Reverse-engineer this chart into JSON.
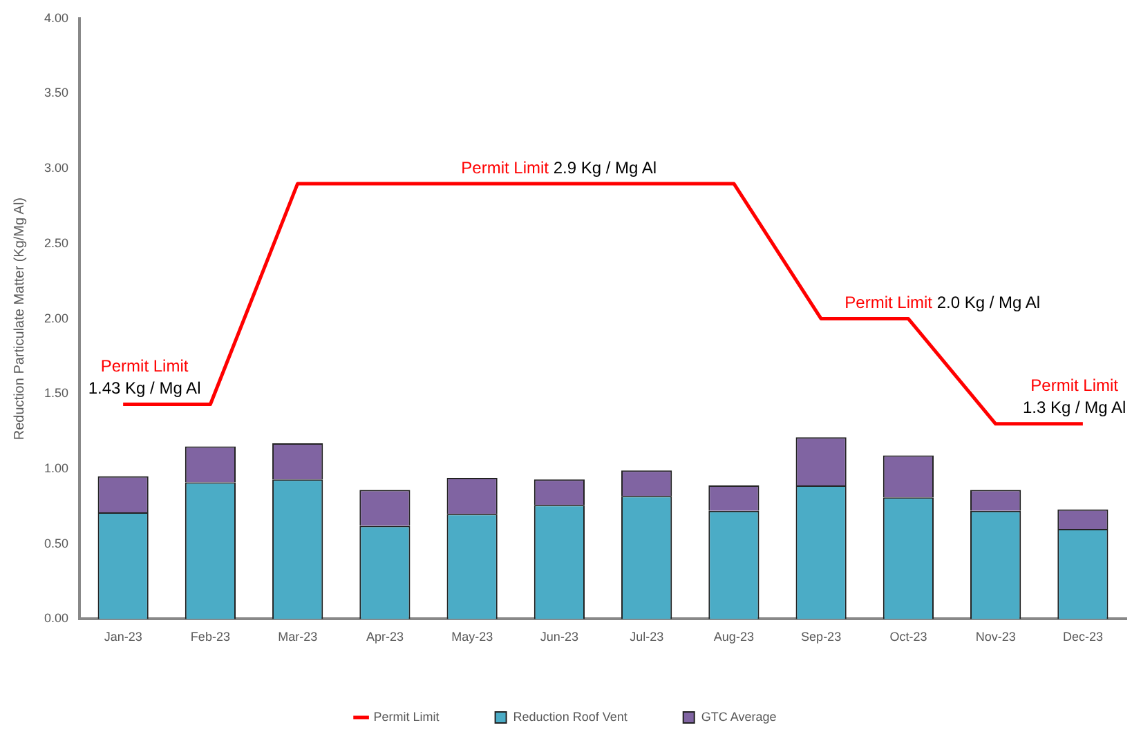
{
  "chart_data": {
    "type": "bar",
    "stacked": true,
    "ylabel": "Reduction Particulate Matter (Kg/Mg Al)",
    "categories": [
      "Jan-23",
      "Feb-23",
      "Mar-23",
      "Apr-23",
      "May-23",
      "Jun-23",
      "Jul-23",
      "Aug-23",
      "Sep-23",
      "Oct-23",
      "Nov-23",
      "Dec-23"
    ],
    "series": [
      {
        "name": "Reduction Roof Vent",
        "color": "#4bacc6",
        "values": [
          0.71,
          0.91,
          0.93,
          0.62,
          0.7,
          0.76,
          0.82,
          0.72,
          0.89,
          0.81,
          0.72,
          0.6
        ]
      },
      {
        "name": "GTC Average",
        "color": "#8064a2",
        "values": [
          0.24,
          0.24,
          0.24,
          0.24,
          0.24,
          0.17,
          0.17,
          0.17,
          0.32,
          0.28,
          0.14,
          0.13
        ]
      },
      {
        "name": "Permit Limit",
        "type": "line",
        "color": "#ff0000",
        "values": [
          1.43,
          1.43,
          2.9,
          2.9,
          2.9,
          2.9,
          2.9,
          2.9,
          2.0,
          2.0,
          1.3,
          1.3
        ]
      }
    ],
    "ylim": [
      0,
      4
    ],
    "yticks": [
      {
        "value": 0,
        "label": "0.00"
      },
      {
        "value": 0.5,
        "label": "0.50"
      },
      {
        "value": 1,
        "label": "1.00"
      },
      {
        "value": 1.5,
        "label": "1.50"
      },
      {
        "value": 2,
        "label": "2.00"
      },
      {
        "value": 2.5,
        "label": "2.50"
      },
      {
        "value": 3,
        "label": "3.00"
      },
      {
        "value": 3.5,
        "label": "3.50"
      },
      {
        "value": 4,
        "label": "4.00"
      }
    ],
    "grid": false,
    "legend": "bottom",
    "marker": "none",
    "line_style": "solid",
    "annotations": [
      {
        "text": "Permit Limit 1.43 Kg / Mg Al",
        "x": "Jan-23",
        "y": 1.43
      },
      {
        "text": "Permit Limit 2.9 Kg / Mg Al",
        "x": "Jun-23",
        "y": 2.9
      },
      {
        "text": "Permit Limit 2.0 Kg / Mg Al",
        "x": "Oct-23",
        "y": 2.0
      },
      {
        "text": "Permit Limit 1.3 Kg / Mg Al",
        "x": "Dec-23",
        "y": 1.3
      }
    ]
  }
}
